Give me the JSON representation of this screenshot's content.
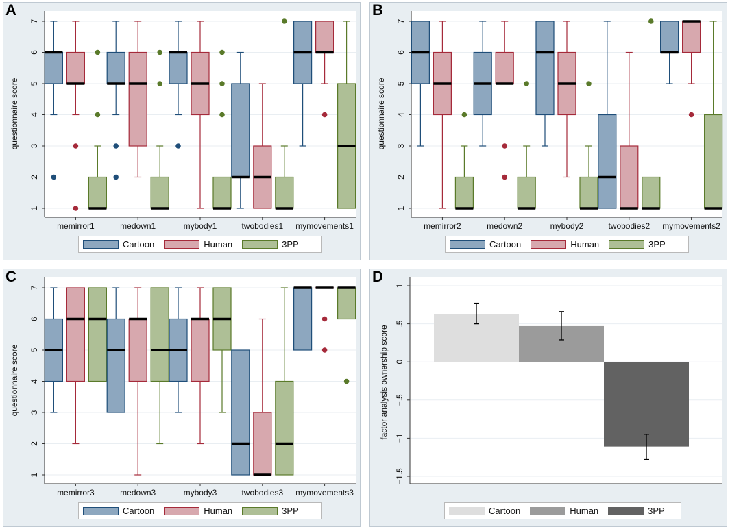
{
  "colors": {
    "panel_bg": "#e8eef2",
    "plot_bg": "#ffffff",
    "grid": "#e9eef2",
    "median": "#000000",
    "cartoon_fill": "#8da7bf",
    "cartoon_line": "#1f4e79",
    "human_fill": "#d7a8ae",
    "human_line": "#a52a3a",
    "threepp_fill": "#aebf96",
    "threepp_line": "#5a7a2a",
    "bar_cartoon": "#dedede",
    "bar_human": "#9b9b9b",
    "bar_3pp": "#626262"
  },
  "panels": [
    {
      "id": "A",
      "letter": "A",
      "chart_data": {
        "type": "box",
        "ylabel": "questionnaire score",
        "ylim": [
          1,
          7
        ],
        "yticks": [
          "1",
          "2",
          "3",
          "4",
          "5",
          "6",
          "7"
        ],
        "categories": [
          "memirror1",
          "medown1",
          "mybody1",
          "twobodies1",
          "mymovements1"
        ],
        "series": [
          {
            "name": "Cartoon",
            "boxes": [
              {
                "wlo": 4,
                "q1": 5,
                "med": 6,
                "q3": 6,
                "whi": 7,
                "out": [
                  2
                ]
              },
              {
                "wlo": 4,
                "q1": 5,
                "med": 5,
                "q3": 6,
                "whi": 7,
                "out": [
                  2,
                  3
                ]
              },
              {
                "wlo": 4,
                "q1": 5,
                "med": 6,
                "q3": 6,
                "whi": 7,
                "out": [
                  3
                ]
              },
              {
                "wlo": 1,
                "q1": 2,
                "med": 2,
                "q3": 5,
                "whi": 6,
                "out": []
              },
              {
                "wlo": 3,
                "q1": 5,
                "med": 6,
                "q3": 7,
                "whi": 7,
                "out": []
              }
            ]
          },
          {
            "name": "Human",
            "boxes": [
              {
                "wlo": 4,
                "q1": 5,
                "med": 5,
                "q3": 6,
                "whi": 7,
                "out": [
                  1,
                  3
                ]
              },
              {
                "wlo": 2,
                "q1": 3,
                "med": 5,
                "q3": 6,
                "whi": 7,
                "out": []
              },
              {
                "wlo": 1,
                "q1": 4,
                "med": 5,
                "q3": 6,
                "whi": 7,
                "out": []
              },
              {
                "wlo": 1,
                "q1": 1,
                "med": 2,
                "q3": 3,
                "whi": 5,
                "out": []
              },
              {
                "wlo": 5,
                "q1": 6,
                "med": 6,
                "q3": 7,
                "whi": 7,
                "out": [
                  4
                ]
              }
            ]
          },
          {
            "name": "3PP",
            "boxes": [
              {
                "wlo": 1,
                "q1": 1,
                "med": 1,
                "q3": 2,
                "whi": 3,
                "out": [
                  4,
                  6
                ]
              },
              {
                "wlo": 1,
                "q1": 1,
                "med": 1,
                "q3": 2,
                "whi": 3,
                "out": [
                  5,
                  6
                ]
              },
              {
                "wlo": 1,
                "q1": 1,
                "med": 1,
                "q3": 2,
                "whi": 2,
                "out": [
                  4,
                  5,
                  6
                ]
              },
              {
                "wlo": 1,
                "q1": 1,
                "med": 1,
                "q3": 2,
                "whi": 3,
                "out": [
                  7
                ]
              },
              {
                "wlo": 1,
                "q1": 1,
                "med": 3,
                "q3": 5,
                "whi": 7,
                "out": []
              }
            ]
          }
        ],
        "legend": [
          "Cartoon",
          "Human",
          "3PP"
        ]
      }
    },
    {
      "id": "B",
      "letter": "B",
      "chart_data": {
        "type": "box",
        "ylabel": "questionnaire score",
        "ylim": [
          1,
          7
        ],
        "yticks": [
          "1",
          "2",
          "3",
          "4",
          "5",
          "6",
          "7"
        ],
        "categories": [
          "memirror2",
          "medown2",
          "mybody2",
          "twobodies2",
          "mymovements2"
        ],
        "series": [
          {
            "name": "Cartoon",
            "boxes": [
              {
                "wlo": 3,
                "q1": 5,
                "med": 6,
                "q3": 7,
                "whi": 7,
                "out": []
              },
              {
                "wlo": 3,
                "q1": 4,
                "med": 5,
                "q3": 6,
                "whi": 7,
                "out": []
              },
              {
                "wlo": 3,
                "q1": 4,
                "med": 6,
                "q3": 7,
                "whi": 7,
                "out": []
              },
              {
                "wlo": 1,
                "q1": 1,
                "med": 2,
                "q3": 4,
                "whi": 7,
                "out": []
              },
              {
                "wlo": 5,
                "q1": 6,
                "med": 6,
                "q3": 7,
                "whi": 7,
                "out": []
              }
            ]
          },
          {
            "name": "Human",
            "boxes": [
              {
                "wlo": 1,
                "q1": 4,
                "med": 5,
                "q3": 6,
                "whi": 7,
                "out": []
              },
              {
                "wlo": 5,
                "q1": 5,
                "med": 5,
                "q3": 6,
                "whi": 7,
                "out": [
                  2,
                  3
                ]
              },
              {
                "wlo": 2,
                "q1": 4,
                "med": 5,
                "q3": 6,
                "whi": 7,
                "out": []
              },
              {
                "wlo": 1,
                "q1": 1,
                "med": 1,
                "q3": 3,
                "whi": 6,
                "out": []
              },
              {
                "wlo": 5,
                "q1": 6,
                "med": 7,
                "q3": 7,
                "whi": 7,
                "out": [
                  4
                ]
              }
            ]
          },
          {
            "name": "3PP",
            "boxes": [
              {
                "wlo": 1,
                "q1": 1,
                "med": 1,
                "q3": 2,
                "whi": 3,
                "out": [
                  4
                ]
              },
              {
                "wlo": 1,
                "q1": 1,
                "med": 1,
                "q3": 2,
                "whi": 3,
                "out": [
                  5
                ]
              },
              {
                "wlo": 1,
                "q1": 1,
                "med": 1,
                "q3": 2,
                "whi": 3,
                "out": [
                  5
                ]
              },
              {
                "wlo": 1,
                "q1": 1,
                "med": 1,
                "q3": 2,
                "whi": 2,
                "out": [
                  7
                ]
              },
              {
                "wlo": 1,
                "q1": 1,
                "med": 1,
                "q3": 4,
                "whi": 7,
                "out": []
              }
            ]
          }
        ],
        "legend": [
          "Cartoon",
          "Human",
          "3PP"
        ]
      }
    },
    {
      "id": "C",
      "letter": "C",
      "chart_data": {
        "type": "box",
        "ylabel": "questionnaire score",
        "ylim": [
          1,
          7
        ],
        "yticks": [
          "1",
          "2",
          "3",
          "4",
          "5",
          "6",
          "7"
        ],
        "categories": [
          "memirror3",
          "medown3",
          "mybody3",
          "twobodies3",
          "mymovements3"
        ],
        "series": [
          {
            "name": "Cartoon",
            "boxes": [
              {
                "wlo": 3,
                "q1": 4,
                "med": 5,
                "q3": 6,
                "whi": 7,
                "out": []
              },
              {
                "wlo": 3,
                "q1": 3,
                "med": 5,
                "q3": 6,
                "whi": 7,
                "out": []
              },
              {
                "wlo": 3,
                "q1": 4,
                "med": 5,
                "q3": 6,
                "whi": 7,
                "out": []
              },
              {
                "wlo": 1,
                "q1": 1,
                "med": 2,
                "q3": 5,
                "whi": 5,
                "out": []
              },
              {
                "wlo": 5,
                "q1": 5,
                "med": 7,
                "q3": 7,
                "whi": 7,
                "out": []
              }
            ]
          },
          {
            "name": "Human",
            "boxes": [
              {
                "wlo": 2,
                "q1": 4,
                "med": 6,
                "q3": 7,
                "whi": 7,
                "out": []
              },
              {
                "wlo": 1,
                "q1": 4,
                "med": 6,
                "q3": 6,
                "whi": 7,
                "out": []
              },
              {
                "wlo": 2,
                "q1": 4,
                "med": 6,
                "q3": 6,
                "whi": 7,
                "out": []
              },
              {
                "wlo": 1,
                "q1": 1,
                "med": 1,
                "q3": 3,
                "whi": 6,
                "out": []
              },
              {
                "wlo": 7,
                "q1": 7,
                "med": 7,
                "q3": 7,
                "whi": 7,
                "out": [
                  5,
                  6
                ]
              }
            ]
          },
          {
            "name": "3PP",
            "boxes": [
              {
                "wlo": 4,
                "q1": 4,
                "med": 6,
                "q3": 7,
                "whi": 7,
                "out": []
              },
              {
                "wlo": 2,
                "q1": 4,
                "med": 5,
                "q3": 7,
                "whi": 7,
                "out": []
              },
              {
                "wlo": 3,
                "q1": 5,
                "med": 6,
                "q3": 7,
                "whi": 7,
                "out": []
              },
              {
                "wlo": 1,
                "q1": 1,
                "med": 2,
                "q3": 4,
                "whi": 7,
                "out": []
              },
              {
                "wlo": 6,
                "q1": 6,
                "med": 7,
                "q3": 7,
                "whi": 7,
                "out": [
                  4
                ]
              }
            ]
          }
        ],
        "legend": [
          "Cartoon",
          "Human",
          "3PP"
        ]
      }
    },
    {
      "id": "D",
      "letter": "D",
      "chart_data": {
        "type": "bar",
        "ylabel": "factor analysis ownership score",
        "ylim": [
          -1.5,
          1
        ],
        "yticks": [
          {
            "v": 1,
            "label": "1"
          },
          {
            "v": 0.5,
            "label": ".5"
          },
          {
            "v": 0,
            "label": "0"
          },
          {
            "v": -0.5,
            "label": "−.5"
          },
          {
            "v": -1,
            "label": "−1"
          },
          {
            "v": -1.5,
            "label": "−1.5"
          }
        ],
        "categories": [
          "Cartoon",
          "Human",
          "3PP"
        ],
        "values": [
          0.63,
          0.47,
          -1.11
        ],
        "error_low": [
          0.5,
          0.29,
          -1.28
        ],
        "error_high": [
          0.77,
          0.66,
          -0.95
        ],
        "legend": [
          "Cartoon",
          "Human",
          "3PP"
        ]
      }
    }
  ]
}
